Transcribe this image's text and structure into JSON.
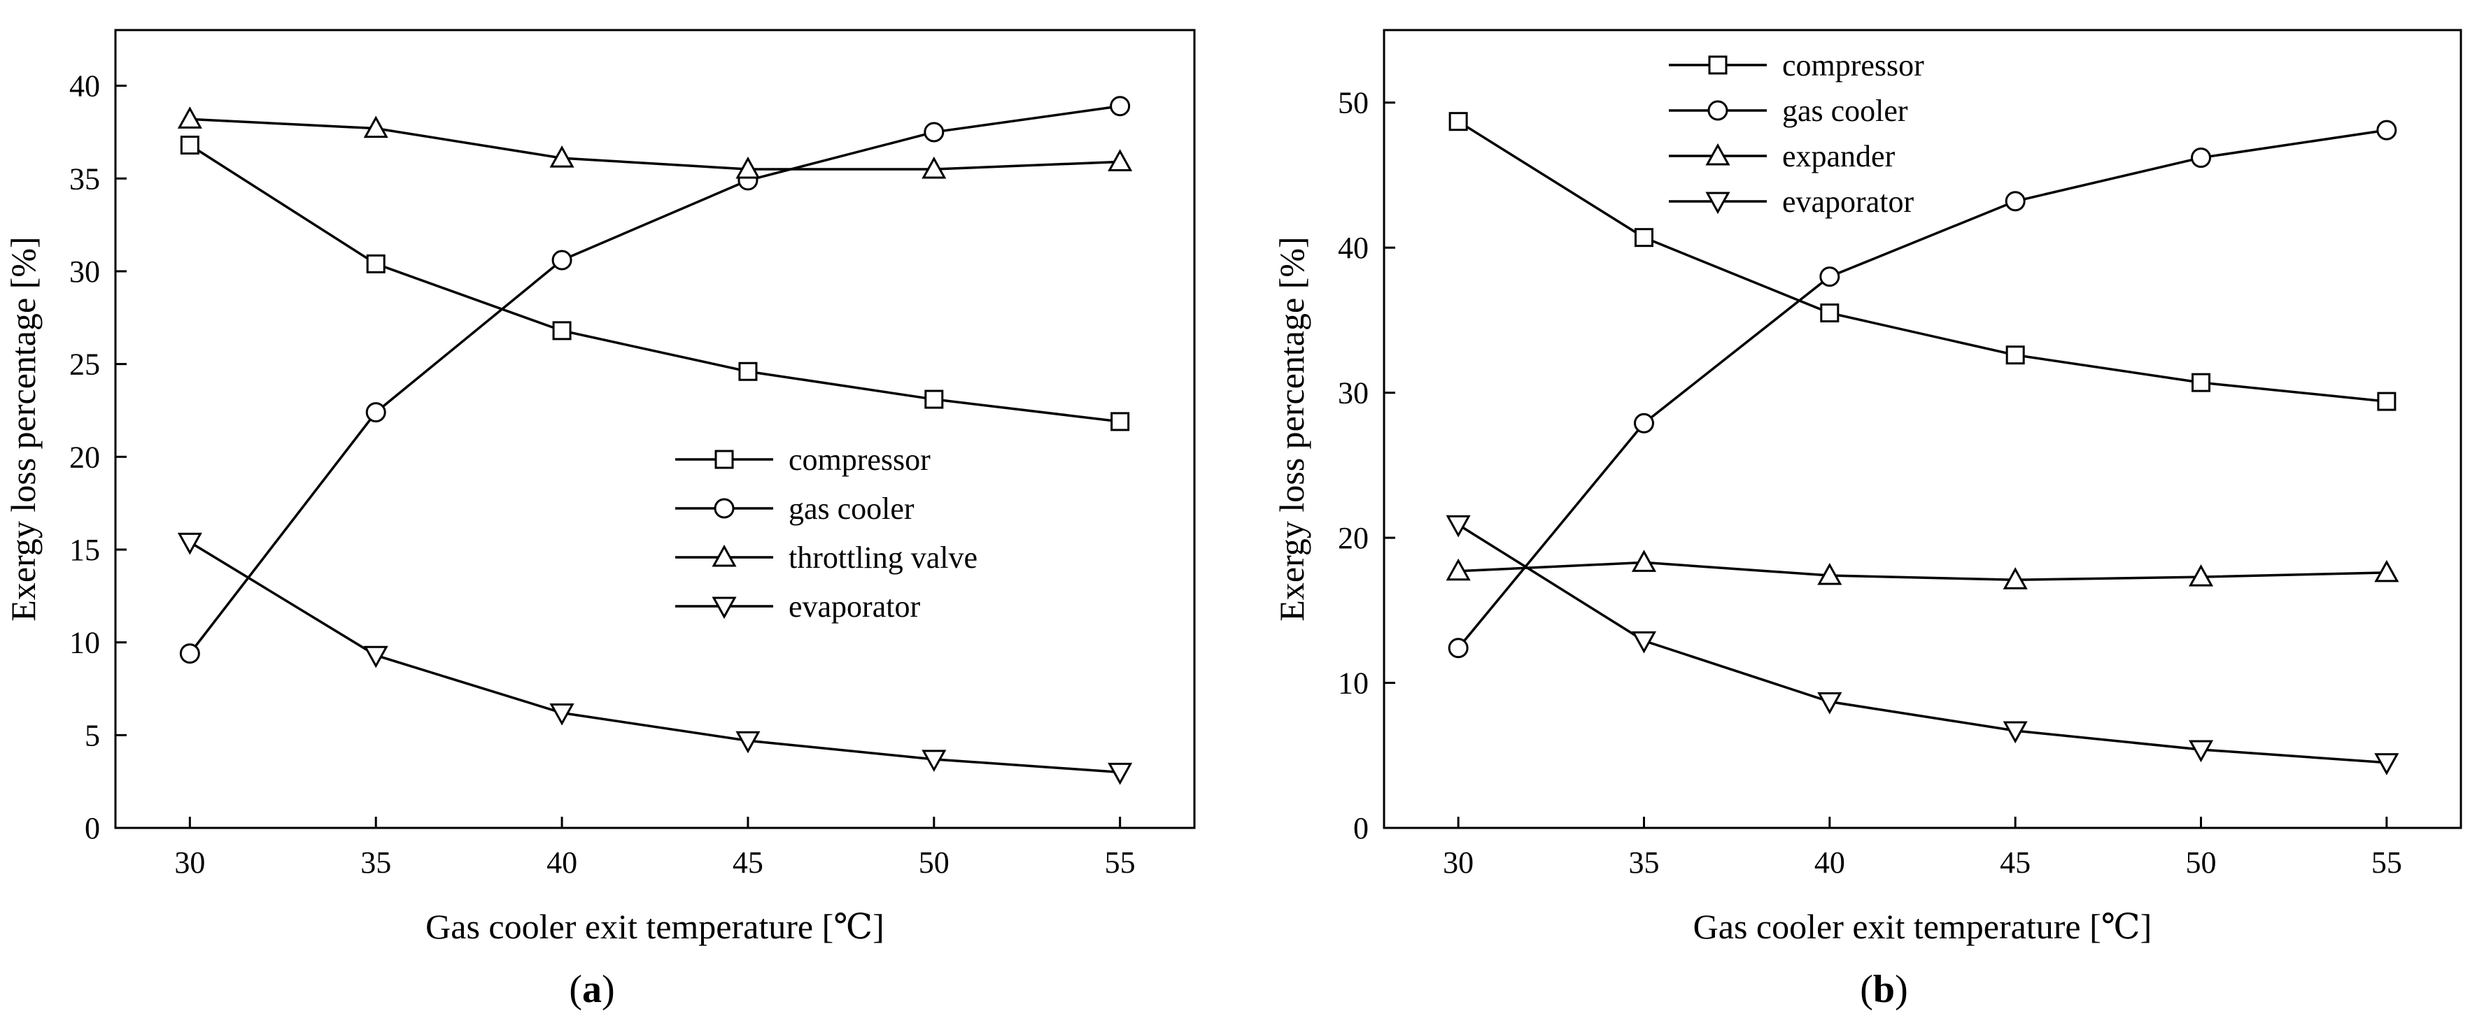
{
  "chart_data": [
    {
      "type": "line",
      "panel_label": "(a)",
      "xlabel": "Gas cooler exit temperature  [℃]",
      "ylabel": "Exergy loss percentage [%]",
      "x": [
        30,
        35,
        40,
        45,
        50,
        55
      ],
      "xlim": [
        28,
        57
      ],
      "ylim": [
        0,
        43
      ],
      "xticks": [
        30,
        35,
        40,
        45,
        50,
        55
      ],
      "yticks": [
        0,
        5,
        10,
        15,
        20,
        25,
        30,
        35,
        40
      ],
      "grid": false,
      "legend_position": "center-right",
      "series": [
        {
          "name": "compressor",
          "marker": "square",
          "values": [
            36.8,
            30.4,
            26.8,
            24.6,
            23.1,
            21.9
          ]
        },
        {
          "name": "gas cooler",
          "marker": "circle",
          "values": [
            9.4,
            22.4,
            30.6,
            34.9,
            37.5,
            38.9
          ]
        },
        {
          "name": "throttling valve",
          "marker": "triangle-up",
          "values": [
            38.2,
            37.7,
            36.1,
            35.5,
            35.5,
            35.9
          ]
        },
        {
          "name": "evaporator",
          "marker": "triangle-down",
          "values": [
            15.4,
            9.3,
            6.2,
            4.7,
            3.7,
            3.0
          ]
        }
      ]
    },
    {
      "type": "line",
      "panel_label": "(b)",
      "xlabel": "Gas cooler exit temperature  [℃]",
      "ylabel": "Exergy loss percentage [%]",
      "x": [
        30,
        35,
        40,
        45,
        50,
        55
      ],
      "xlim": [
        28,
        57
      ],
      "ylim": [
        0,
        55
      ],
      "xticks": [
        30,
        35,
        40,
        45,
        50,
        55
      ],
      "yticks": [
        0,
        10,
        20,
        30,
        40,
        50
      ],
      "grid": false,
      "legend_position": "top-left",
      "series": [
        {
          "name": "compressor",
          "marker": "square",
          "values": [
            48.7,
            40.7,
            35.5,
            32.6,
            30.7,
            29.4
          ]
        },
        {
          "name": "gas cooler",
          "marker": "circle",
          "values": [
            12.4,
            27.9,
            38.0,
            43.2,
            46.2,
            48.1
          ]
        },
        {
          "name": "expander",
          "marker": "triangle-up",
          "values": [
            17.7,
            18.3,
            17.4,
            17.1,
            17.3,
            17.6
          ]
        },
        {
          "name": "evaporator",
          "marker": "triangle-down",
          "values": [
            20.9,
            12.9,
            8.7,
            6.7,
            5.4,
            4.5
          ]
        }
      ]
    }
  ]
}
